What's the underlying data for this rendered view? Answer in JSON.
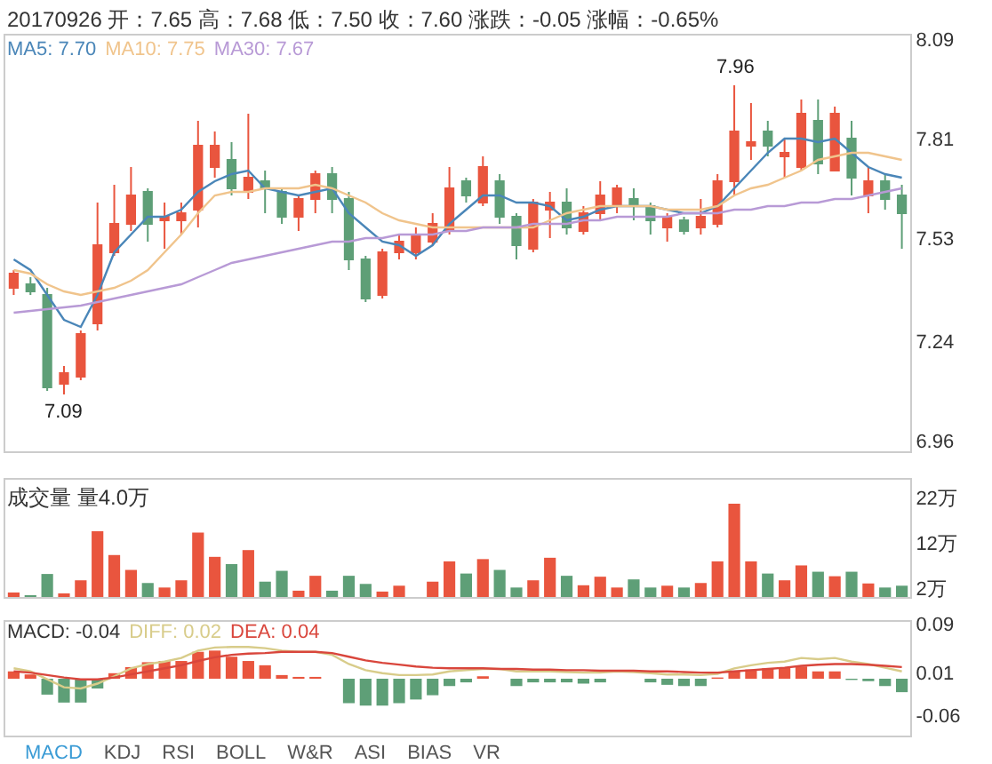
{
  "chart_data": [
    {
      "type": "candlestick",
      "title": "20170926 开：7.65 高：7.68 低：7.50 收：7.60 涨跌：-0.05 涨幅：-0.65%",
      "legend": "top left",
      "tick_labels": "y",
      "categories": [
        null,
        null,
        null,
        null,
        null,
        null,
        null,
        null,
        null,
        null,
        null,
        null,
        null,
        null,
        null,
        null,
        null,
        null,
        null,
        null,
        null,
        null,
        null,
        null,
        null,
        null,
        null,
        null,
        null,
        null,
        null,
        null,
        null,
        null,
        null,
        null,
        null,
        null,
        null,
        null,
        null,
        null,
        null,
        null,
        null,
        null,
        null,
        null,
        null,
        null,
        null,
        null,
        null,
        null
      ],
      "ohlc": [
        [
          7.39,
          7.44,
          7.37,
          7.43
        ],
        [
          7.4,
          7.42,
          7.37,
          7.38
        ],
        [
          7.37,
          7.39,
          7.1,
          7.11
        ],
        [
          7.12,
          7.17,
          7.09,
          7.15
        ],
        [
          7.14,
          7.27,
          7.13,
          7.26
        ],
        [
          7.29,
          7.63,
          7.27,
          7.51
        ],
        [
          7.49,
          7.68,
          7.48,
          7.57
        ],
        [
          7.57,
          7.73,
          7.55,
          7.65
        ],
        [
          7.66,
          7.67,
          7.52,
          7.57
        ],
        [
          7.58,
          7.63,
          7.5,
          7.59
        ],
        [
          7.58,
          7.63,
          7.54,
          7.6
        ],
        [
          7.61,
          7.86,
          7.56,
          7.79
        ],
        [
          7.73,
          7.83,
          7.7,
          7.79
        ],
        [
          7.75,
          7.8,
          7.65,
          7.67
        ],
        [
          7.66,
          7.88,
          7.64,
          7.7
        ],
        [
          7.69,
          7.72,
          7.6,
          7.67
        ],
        [
          7.66,
          7.67,
          7.57,
          7.59
        ],
        [
          7.59,
          7.65,
          7.55,
          7.64
        ],
        [
          7.64,
          7.72,
          7.6,
          7.71
        ],
        [
          7.71,
          7.73,
          7.6,
          7.64
        ],
        [
          7.64,
          7.66,
          7.44,
          7.47
        ],
        [
          7.47,
          7.48,
          7.35,
          7.36
        ],
        [
          7.37,
          7.5,
          7.36,
          7.49
        ],
        [
          7.49,
          7.54,
          7.47,
          7.52
        ],
        [
          7.49,
          7.56,
          7.47,
          7.54
        ],
        [
          7.52,
          7.6,
          7.51,
          7.57
        ],
        [
          7.55,
          7.73,
          7.54,
          7.67
        ],
        [
          7.69,
          7.7,
          7.63,
          7.65
        ],
        [
          7.63,
          7.76,
          7.62,
          7.73
        ],
        [
          7.69,
          7.71,
          7.57,
          7.59
        ],
        [
          7.59,
          7.6,
          7.47,
          7.51
        ],
        [
          7.5,
          7.64,
          7.49,
          7.63
        ],
        [
          7.61,
          7.66,
          7.53,
          7.63
        ],
        [
          7.63,
          7.67,
          7.54,
          7.56
        ],
        [
          7.55,
          7.62,
          7.54,
          7.6
        ],
        [
          7.6,
          7.69,
          7.58,
          7.65
        ],
        [
          7.62,
          7.68,
          7.6,
          7.67
        ],
        [
          7.64,
          7.67,
          7.58,
          7.62
        ],
        [
          7.62,
          7.63,
          7.54,
          7.58
        ],
        [
          7.56,
          7.6,
          7.52,
          7.59
        ],
        [
          7.58,
          7.59,
          7.54,
          7.55
        ],
        [
          7.56,
          7.64,
          7.54,
          7.59
        ],
        [
          7.57,
          7.71,
          7.56,
          7.69
        ],
        [
          7.69,
          7.96,
          7.65,
          7.83
        ],
        [
          7.79,
          7.91,
          7.75,
          7.8
        ],
        [
          7.83,
          7.86,
          7.76,
          7.79
        ],
        [
          7.76,
          7.81,
          7.7,
          7.77
        ],
        [
          7.73,
          7.92,
          7.72,
          7.88
        ],
        [
          7.86,
          7.92,
          7.71,
          7.74
        ],
        [
          7.72,
          7.9,
          7.72,
          7.88
        ],
        [
          7.81,
          7.86,
          7.65,
          7.7
        ],
        [
          7.65,
          7.73,
          7.6,
          7.69
        ],
        [
          7.69,
          7.71,
          7.61,
          7.64
        ],
        [
          7.65,
          7.68,
          7.5,
          7.6
        ]
      ],
      "colors": [
        "#e9553e",
        "#5e9f77",
        "#5e9f77",
        "#e9553e",
        "#e9553e",
        "#e9553e",
        "#e9553e",
        "#e9553e",
        "#5e9f77",
        "#e9553e",
        "#e9553e",
        "#e9553e",
        "#e9553e",
        "#5e9f77",
        "#e9553e",
        "#5e9f77",
        "#5e9f77",
        "#e9553e",
        "#e9553e",
        "#5e9f77",
        "#5e9f77",
        "#5e9f77",
        "#e9553e",
        "#e9553e",
        "#e9553e",
        "#e9553e",
        "#e9553e",
        "#5e9f77",
        "#e9553e",
        "#5e9f77",
        "#5e9f77",
        "#e9553e",
        "#e9553e",
        "#5e9f77",
        "#e9553e",
        "#e9553e",
        "#e9553e",
        "#5e9f77",
        "#5e9f77",
        "#e9553e",
        "#5e9f77",
        "#e9553e",
        "#e9553e",
        "#e9553e",
        "#e9553e",
        "#5e9f77",
        "#e9553e",
        "#e9553e",
        "#5e9f77",
        "#e9553e",
        "#5e9f77",
        "#e9553e",
        "#5e9f77",
        "#5e9f77"
      ],
      "series": [
        {
          "type": "line",
          "name": "MA5: 7.70",
          "color": "#4a86b8",
          "values": [
            7.47,
            7.44,
            7.37,
            7.3,
            7.28,
            7.37,
            7.49,
            7.54,
            7.59,
            7.59,
            7.61,
            7.66,
            7.69,
            7.71,
            7.72,
            7.67,
            7.66,
            7.65,
            7.66,
            7.67,
            7.6,
            7.56,
            7.52,
            7.51,
            7.48,
            7.51,
            7.57,
            7.61,
            7.65,
            7.65,
            7.63,
            7.63,
            7.62,
            7.58,
            7.59,
            7.61,
            7.62,
            7.62,
            7.62,
            7.61,
            7.6,
            7.6,
            7.62,
            7.67,
            7.72,
            7.77,
            7.81,
            7.81,
            7.8,
            7.81,
            7.77,
            7.73,
            7.71,
            7.7
          ]
        },
        {
          "type": "line",
          "name": "MA10: 7.75",
          "color": "#f0c48c",
          "values": [
            7.44,
            7.43,
            7.4,
            7.38,
            7.37,
            7.38,
            7.39,
            7.41,
            7.44,
            7.49,
            7.54,
            7.6,
            7.65,
            7.66,
            7.66,
            7.67,
            7.67,
            7.67,
            7.68,
            7.67,
            7.65,
            7.63,
            7.6,
            7.58,
            7.57,
            7.56,
            7.56,
            7.56,
            7.56,
            7.56,
            7.56,
            7.56,
            7.58,
            7.6,
            7.61,
            7.62,
            7.62,
            7.62,
            7.62,
            7.61,
            7.61,
            7.61,
            7.62,
            7.65,
            7.67,
            7.68,
            7.7,
            7.72,
            7.75,
            7.76,
            7.77,
            7.77,
            7.76,
            7.75
          ]
        },
        {
          "type": "line",
          "name": "MA30: 7.67",
          "color": "#b89ad6",
          "values": [
            7.32,
            7.325,
            7.33,
            7.335,
            7.34,
            7.35,
            7.36,
            7.37,
            7.38,
            7.39,
            7.4,
            7.42,
            7.44,
            7.46,
            7.47,
            7.48,
            7.49,
            7.5,
            7.51,
            7.52,
            7.52,
            7.53,
            7.53,
            7.54,
            7.54,
            7.54,
            7.55,
            7.55,
            7.56,
            7.56,
            7.56,
            7.57,
            7.57,
            7.57,
            7.58,
            7.58,
            7.59,
            7.59,
            7.59,
            7.59,
            7.6,
            7.6,
            7.6,
            7.61,
            7.61,
            7.62,
            7.62,
            7.63,
            7.63,
            7.64,
            7.64,
            7.65,
            7.66,
            7.67
          ]
        }
      ],
      "ylim": [
        6.93,
        8.1
      ],
      "yticks": [
        6.96,
        7.24,
        7.53,
        7.81,
        8.09
      ],
      "annotations": [
        {
          "text": "7.96",
          "y": 7.96
        },
        {
          "text": "7.09",
          "y": 7.09
        }
      ]
    },
    {
      "type": "bar",
      "title": "成交量 量4.0万",
      "tick_labels": "y",
      "categories": [
        null,
        null,
        null,
        null,
        null,
        null,
        null,
        null,
        null,
        null,
        null,
        null,
        null,
        null,
        null,
        null,
        null,
        null,
        null,
        null,
        null,
        null,
        null,
        null,
        null,
        null,
        null,
        null,
        null,
        null,
        null,
        null,
        null,
        null,
        null,
        null,
        null,
        null,
        null,
        null,
        null,
        null,
        null,
        null,
        null,
        null,
        null,
        null,
        null,
        null,
        null,
        null,
        null,
        null
      ],
      "values": [
        1.0,
        0.4,
        5.1,
        0.8,
        3.7,
        14.6,
        9.3,
        6.0,
        3.1,
        2.1,
        3.7,
        14.3,
        8.9,
        7.3,
        10.4,
        3.4,
        5.8,
        1.4,
        4.7,
        1.4,
        4.7,
        2.9,
        1.2,
        2.5,
        null,
        3.4,
        7.9,
        5.2,
        8.4,
        6.0,
        2.1,
        3.7,
        8.7,
        4.7,
        2.6,
        4.5,
        2.1,
        3.9,
        2.1,
        2.5,
        2.1,
        3.1,
        7.9,
        20.7,
        7.9,
        5.2,
        3.7,
        7.0,
        5.6,
        4.6,
        5.6,
        3.0,
        2.1,
        2.5
      ],
      "colors": [
        "#e9553e",
        "#5e9f77",
        "#5e9f77",
        "#e9553e",
        "#e9553e",
        "#e9553e",
        "#e9553e",
        "#e9553e",
        "#5e9f77",
        "#e9553e",
        "#e9553e",
        "#e9553e",
        "#e9553e",
        "#5e9f77",
        "#e9553e",
        "#5e9f77",
        "#5e9f77",
        "#e9553e",
        "#e9553e",
        "#5e9f77",
        "#5e9f77",
        "#5e9f77",
        "#e9553e",
        "#e9553e",
        "#e9553e",
        "#e9553e",
        "#e9553e",
        "#5e9f77",
        "#e9553e",
        "#5e9f77",
        "#5e9f77",
        "#e9553e",
        "#e9553e",
        "#5e9f77",
        "#e9553e",
        "#e9553e",
        "#e9553e",
        "#5e9f77",
        "#5e9f77",
        "#e9553e",
        "#5e9f77",
        "#e9553e",
        "#e9553e",
        "#e9553e",
        "#e9553e",
        "#5e9f77",
        "#e9553e",
        "#e9553e",
        "#5e9f77",
        "#e9553e",
        "#5e9f77",
        "#e9553e",
        "#5e9f77",
        "#5e9f77"
      ],
      "ylim": [
        0,
        26
      ],
      "yticks": [
        {
          "value": 2,
          "label": "2万"
        },
        {
          "value": 12,
          "label": "12万"
        },
        {
          "value": 22,
          "label": "22万"
        }
      ]
    },
    {
      "type": "bar",
      "legend": "top left",
      "tick_labels": "y",
      "categories": [
        null,
        null,
        null,
        null,
        null,
        null,
        null,
        null,
        null,
        null,
        null,
        null,
        null,
        null,
        null,
        null,
        null,
        null,
        null,
        null,
        null,
        null,
        null,
        null,
        null,
        null,
        null,
        null,
        null,
        null,
        null,
        null,
        null,
        null,
        null,
        null,
        null,
        null,
        null,
        null,
        null,
        null,
        null,
        null,
        null,
        null,
        null,
        null,
        null,
        null,
        null,
        null,
        null,
        null
      ],
      "series": [
        {
          "type": "bar",
          "name": "MACD: -0.04",
          "values": [
            0.012,
            0.007,
            -0.026,
            -0.039,
            -0.039,
            -0.016,
            0.009,
            0.019,
            0.027,
            0.029,
            0.029,
            0.044,
            0.046,
            0.036,
            0.029,
            0.022,
            0.006,
            0.003,
            0.003,
            null,
            -0.04,
            -0.044,
            -0.044,
            -0.04,
            -0.034,
            -0.027,
            -0.012,
            -0.006,
            0.004,
            null,
            -0.012,
            -0.006,
            -0.006,
            -0.006,
            -0.008,
            -0.006,
            null,
            null,
            -0.006,
            -0.01,
            -0.012,
            -0.012,
            0.002,
            0.012,
            0.015,
            0.017,
            0.018,
            0.02,
            0.012,
            0.012,
            -0.002,
            -0.004,
            -0.012,
            -0.022
          ],
          "colors": [
            "#e9553e",
            "#e9553e",
            "#5e9f77",
            "#5e9f77",
            "#5e9f77",
            "#5e9f77",
            "#e9553e",
            "#e9553e",
            "#e9553e",
            "#e9553e",
            "#e9553e",
            "#e9553e",
            "#e9553e",
            "#e9553e",
            "#e9553e",
            "#e9553e",
            "#e9553e",
            "#e9553e",
            "#e9553e",
            "#e9553e",
            "#5e9f77",
            "#5e9f77",
            "#5e9f77",
            "#5e9f77",
            "#5e9f77",
            "#5e9f77",
            "#5e9f77",
            "#5e9f77",
            "#e9553e",
            "#e9553e",
            "#5e9f77",
            "#5e9f77",
            "#5e9f77",
            "#5e9f77",
            "#5e9f77",
            "#5e9f77",
            "#e9553e",
            "#e9553e",
            "#5e9f77",
            "#5e9f77",
            "#5e9f77",
            "#5e9f77",
            "#e9553e",
            "#e9553e",
            "#e9553e",
            "#e9553e",
            "#e9553e",
            "#e9553e",
            "#e9553e",
            "#e9553e",
            "#5e9f77",
            "#5e9f77",
            "#5e9f77",
            "#5e9f77"
          ]
        },
        {
          "type": "line",
          "name": "DIFF: 0.02",
          "color": "#d8cc8a",
          "values": [
            0.017,
            0.012,
            -0.001,
            -0.014,
            -0.016,
            -0.008,
            0.004,
            0.017,
            0.024,
            0.028,
            0.034,
            0.046,
            0.051,
            0.052,
            0.052,
            0.05,
            0.046,
            0.044,
            0.044,
            0.039,
            0.024,
            0.014,
            0.009,
            0.006,
            0.006,
            0.007,
            0.012,
            0.014,
            0.016,
            0.016,
            0.012,
            0.012,
            0.012,
            0.011,
            0.01,
            0.01,
            0.012,
            0.011,
            0.009,
            0.007,
            0.007,
            0.006,
            0.008,
            0.017,
            0.022,
            0.026,
            0.028,
            0.034,
            0.032,
            0.034,
            0.028,
            0.024,
            0.018,
            0.012
          ]
        },
        {
          "type": "line",
          "name": "DEA: 0.04",
          "color": "#d9463c",
          "values": [
            0.012,
            0.01,
            0.006,
            0.002,
            -0.001,
            -0.001,
            0.002,
            0.007,
            0.012,
            0.017,
            0.022,
            0.029,
            0.035,
            0.039,
            0.041,
            0.042,
            0.044,
            0.044,
            0.044,
            0.042,
            0.036,
            0.03,
            0.026,
            0.023,
            0.02,
            0.018,
            0.017,
            0.017,
            0.017,
            0.016,
            0.016,
            0.015,
            0.015,
            0.014,
            0.014,
            0.013,
            0.013,
            0.013,
            0.012,
            0.012,
            0.011,
            0.01,
            0.01,
            0.012,
            0.014,
            0.016,
            0.018,
            0.021,
            0.023,
            0.024,
            0.024,
            0.023,
            0.021,
            0.019
          ]
        }
      ],
      "ylim": [
        -0.093,
        0.093
      ],
      "yticks": [
        0.09,
        0.01,
        -0.06
      ],
      "annotations": [
        "MACD",
        "KDJ",
        "RSI",
        "BOLL",
        "W&R",
        "ASI",
        "BIAS",
        "VR"
      ]
    }
  ]
}
